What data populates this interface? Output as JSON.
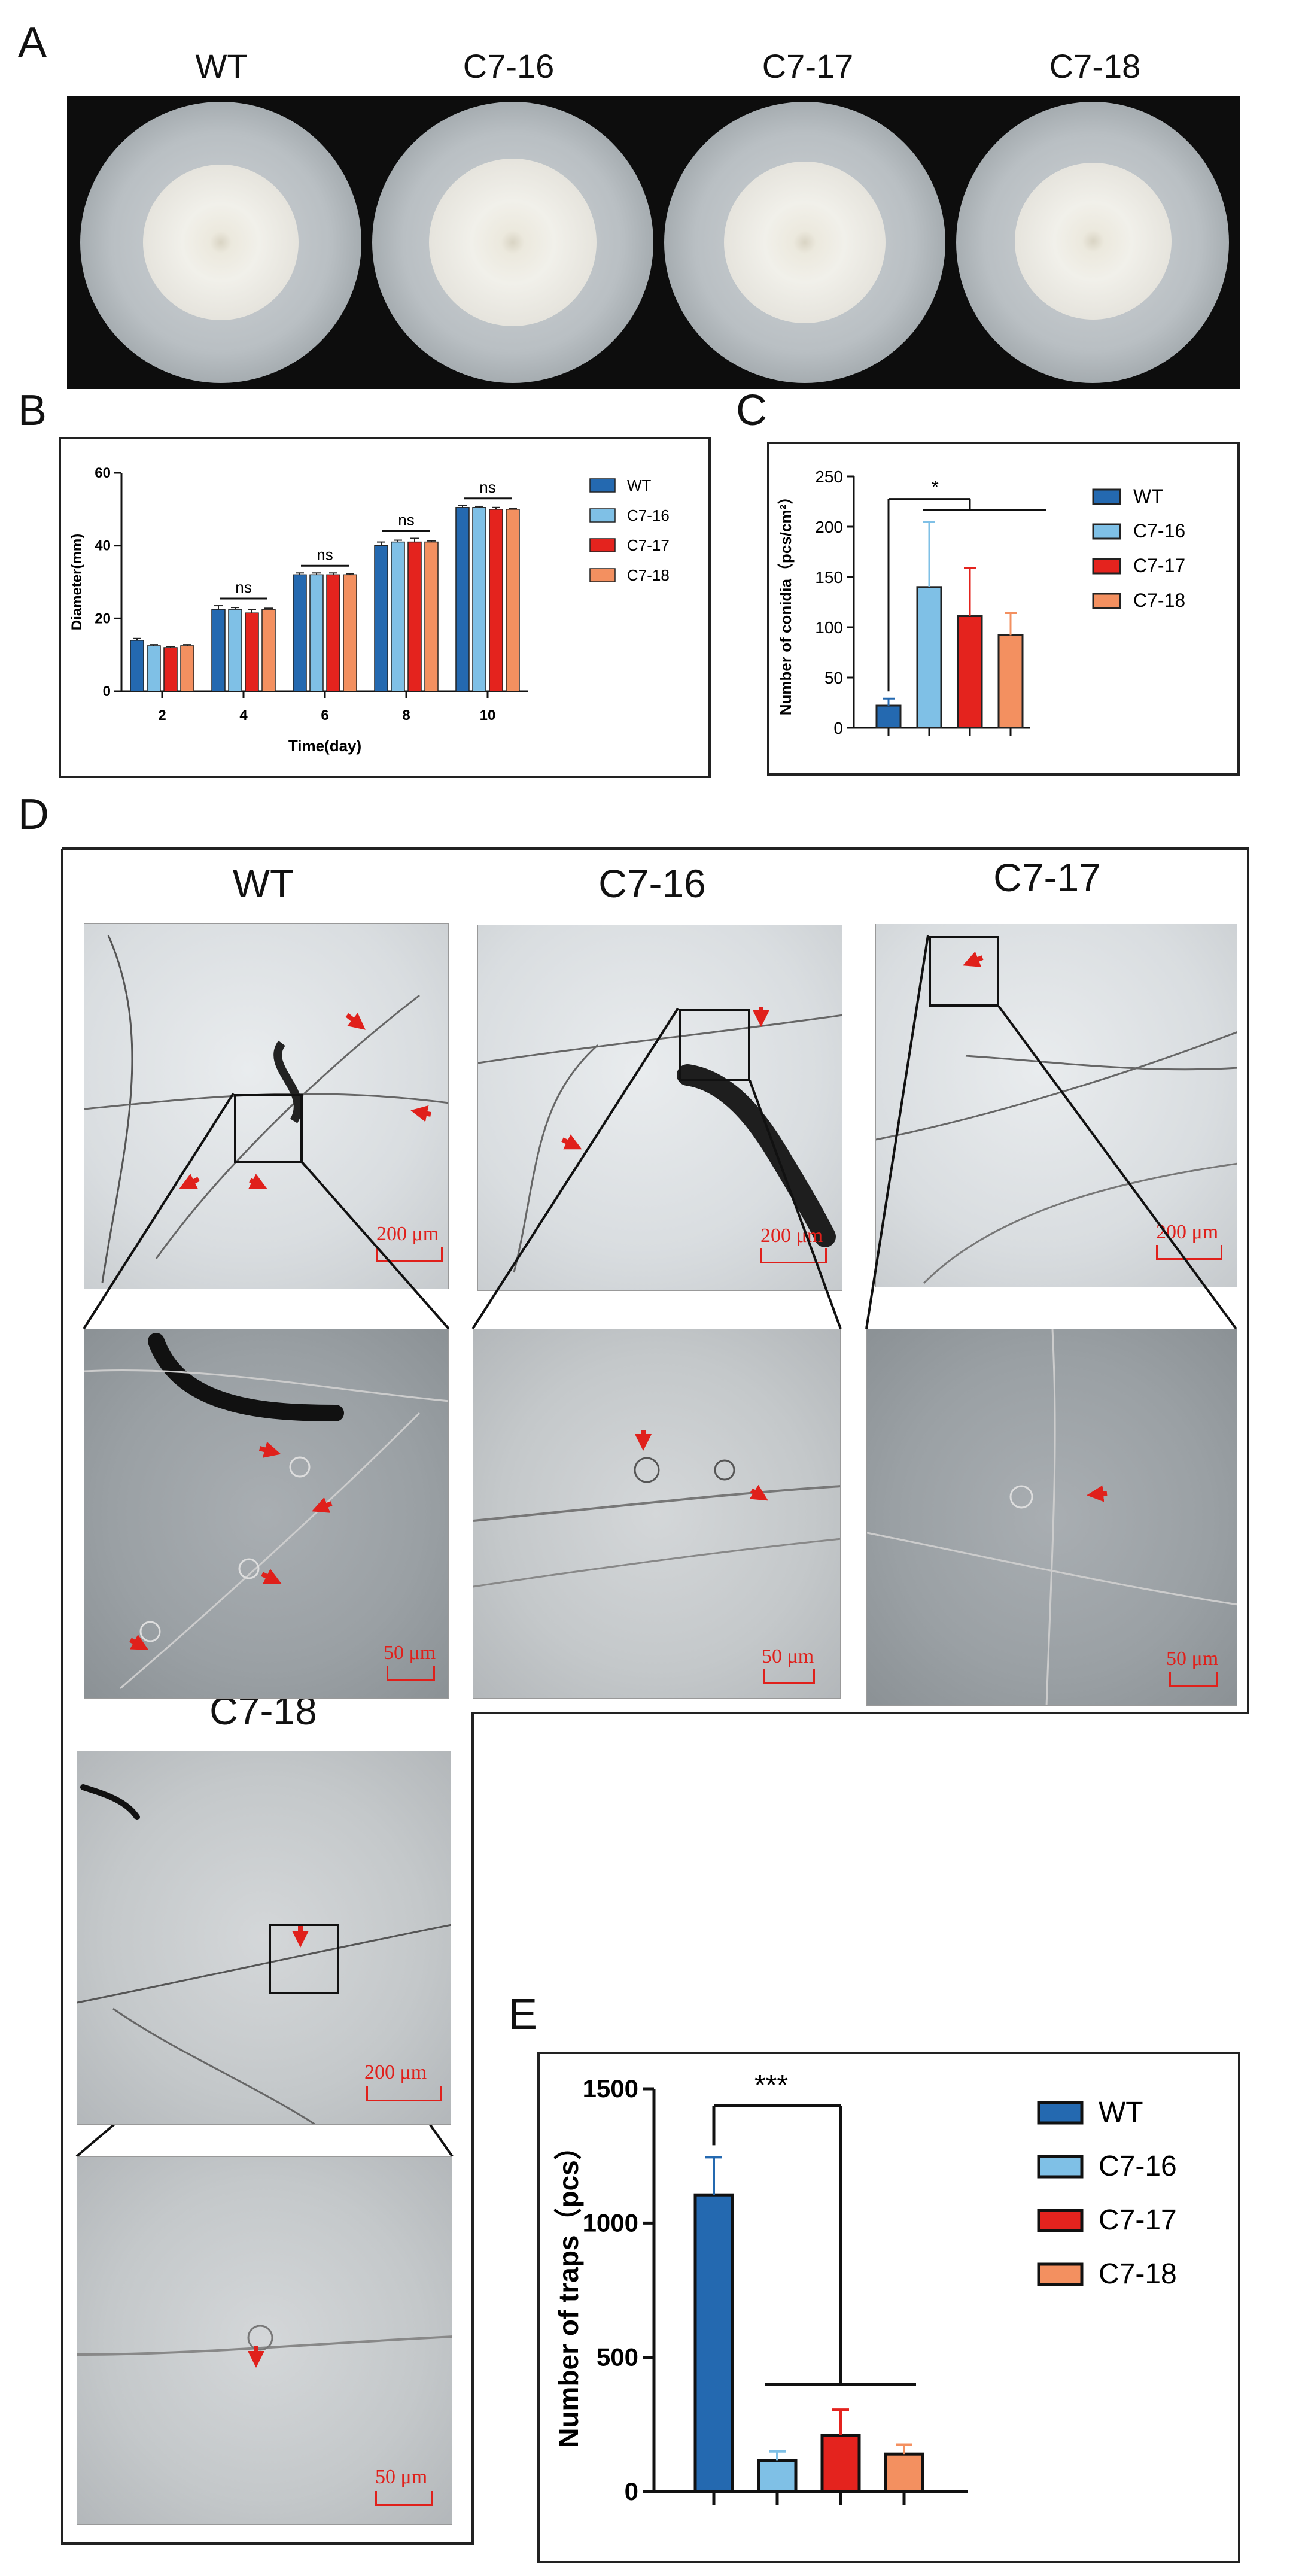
{
  "panels": {
    "A": {
      "label": "A",
      "columns": [
        "WT",
        "C7-16",
        "C7-17",
        "C7-18"
      ]
    },
    "B": {
      "label": "B"
    },
    "C": {
      "label": "C"
    },
    "D": {
      "label": "D",
      "columns": [
        "WT",
        "C7-16",
        "C7-17"
      ],
      "bottom_label": "C7-18",
      "scale_200": "200 μm",
      "scale_50": "50 μm"
    },
    "E": {
      "label": "E"
    }
  },
  "colors": {
    "WT": "#2469b0",
    "C7-16": "#7fc0e6",
    "C7-17": "#e4231e",
    "C7-18": "#f39060",
    "arrow": "#e0201b"
  },
  "chart_data": [
    {
      "id": "B",
      "type": "bar",
      "xlabel": "Time(day)",
      "ylabel": "Diameter(mm)",
      "ylim": [
        0,
        60
      ],
      "yticks": [
        0,
        20,
        40,
        60
      ],
      "categories": [
        "2",
        "4",
        "6",
        "8",
        "10"
      ],
      "series": [
        {
          "name": "WT",
          "values": [
            14,
            22.5,
            32,
            40,
            50.5
          ],
          "errors": [
            0.5,
            1,
            0.5,
            1,
            0.5
          ]
        },
        {
          "name": "C7-16",
          "values": [
            12.5,
            22.5,
            32,
            41,
            50.5
          ],
          "errors": [
            0.3,
            0.5,
            0.5,
            0.5,
            0.3
          ]
        },
        {
          "name": "C7-17",
          "values": [
            12,
            21.5,
            32,
            41,
            50
          ],
          "errors": [
            0.3,
            1,
            0.5,
            1,
            0.5
          ]
        },
        {
          "name": "C7-18",
          "values": [
            12.5,
            22.5,
            32,
            41,
            50
          ],
          "errors": [
            0.3,
            0.3,
            0.3,
            0.3,
            0.3
          ]
        }
      ],
      "annotations": [
        "ns",
        "ns",
        "ns",
        "ns"
      ],
      "legend_placement": "right"
    },
    {
      "id": "C",
      "type": "bar",
      "ylabel": "Number of conidia（pcs/cm²）",
      "ylim": [
        0,
        250
      ],
      "yticks": [
        0,
        50,
        100,
        150,
        200,
        250
      ],
      "categories": [
        "WT",
        "C7-16",
        "C7-17",
        "C7-18"
      ],
      "values": [
        22,
        140,
        111,
        92
      ],
      "errors": [
        7,
        65,
        48,
        22
      ],
      "significance": "*",
      "legend_placement": "right"
    },
    {
      "id": "E",
      "type": "bar",
      "ylabel": "Number of traps（pcs）",
      "ylim": [
        0,
        1500
      ],
      "yticks": [
        0,
        500,
        1000,
        1500
      ],
      "categories": [
        "WT",
        "C7-16",
        "C7-17",
        "C7-18"
      ],
      "values": [
        1105,
        115,
        210,
        140
      ],
      "errors": [
        140,
        35,
        95,
        35
      ],
      "significance": "***",
      "legend_placement": "right"
    }
  ]
}
